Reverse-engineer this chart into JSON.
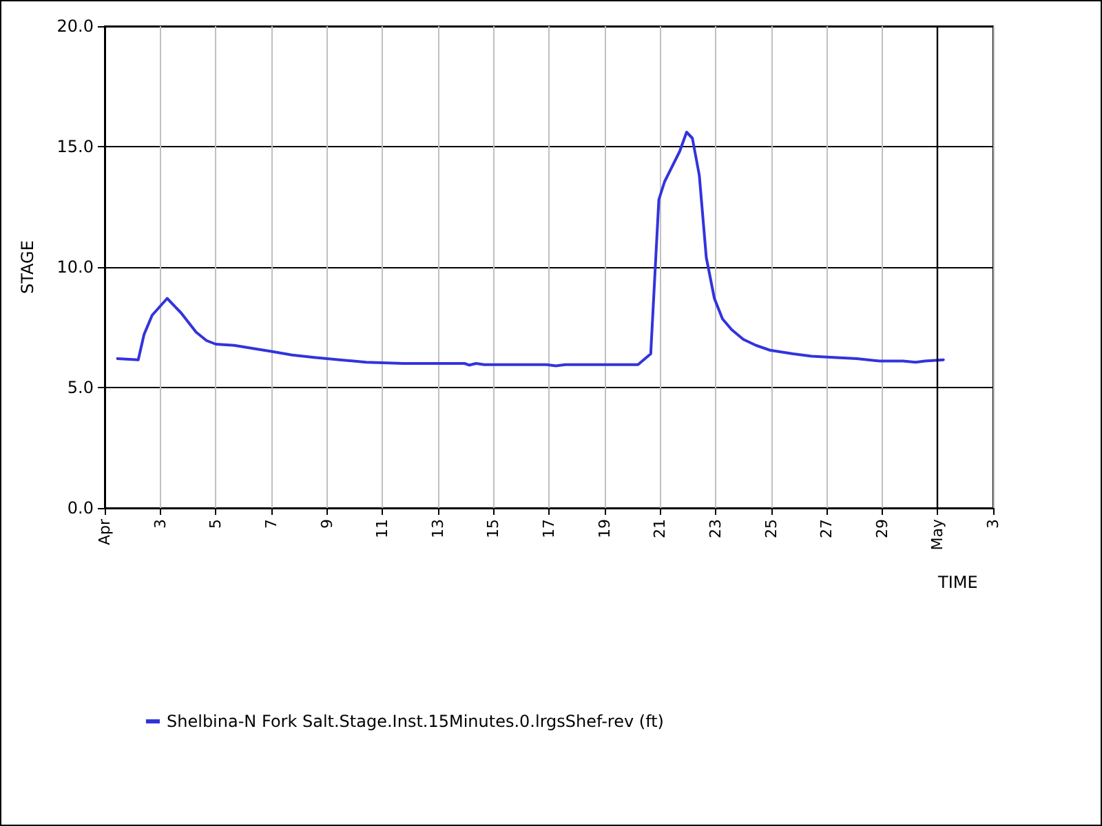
{
  "chart_data": {
    "type": "line",
    "xlabel": "TIME",
    "ylabel": "STAGE",
    "x": [
      "--04-01T11:00",
      "--04-02T05:00",
      "--04-02T10:00",
      "--04-02T17:00",
      "--04-03T06:00",
      "--04-03T18:00",
      "--04-04T07:00",
      "--04-04T16:00",
      "--04-05T00:00",
      "--04-05T16:00",
      "--04-06T11:00",
      "--04-07T00:00",
      "--04-07T18:00",
      "--04-08T13:00",
      "--04-09T11:00",
      "--04-10T10:00",
      "--04-11T18:00",
      "--04-13T23:00",
      "--04-14T03:00",
      "--04-14T09:00",
      "--04-14T16:00",
      "--04-16T22:00",
      "--04-17T06:00",
      "--04-17T14:00",
      "--04-19T20:00",
      "--04-20T05:00",
      "--04-20T16:00",
      "--04-20T23:00",
      "--04-21T04:00",
      "--04-21T17:00",
      "--04-21T23:00",
      "--04-22T04:00",
      "--04-22T10:00",
      "--04-22T16:00",
      "--04-22T23:00",
      "--04-23T06:00",
      "--04-23T14:00",
      "--04-24T00:00",
      "--04-24T11:00",
      "--04-24T23:00",
      "--04-25T19:00",
      "--04-26T11:00",
      "--04-27T06:00",
      "--04-28T02:00",
      "--04-28T22:00",
      "--04-29T18:00",
      "--04-30T05:00",
      "--04-30T13:00",
      "--05-01T05:00"
    ],
    "series": [
      {
        "name": "Shelbina-N Fork Salt.Stage.Inst.15Minutes.0.lrgsShef-rev (ft)",
        "color": "#3333dd",
        "values": [
          6.2,
          6.15,
          7.2,
          8.0,
          8.7,
          8.1,
          7.3,
          6.95,
          6.8,
          6.75,
          6.6,
          6.5,
          6.35,
          6.25,
          6.15,
          6.05,
          6.0,
          6.0,
          5.93,
          6.0,
          5.95,
          5.95,
          5.9,
          5.95,
          5.95,
          5.95,
          6.4,
          12.8,
          13.55,
          14.8,
          15.6,
          15.35,
          13.8,
          10.4,
          8.7,
          7.85,
          7.4,
          7.0,
          6.75,
          6.55,
          6.4,
          6.3,
          6.25,
          6.2,
          6.1,
          6.1,
          6.05,
          6.1,
          6.15
        ]
      }
    ],
    "xlim": [
      "--04-01",
      "--05-03"
    ],
    "xticks": [
      {
        "value": "--04-01",
        "label": "Apr"
      },
      {
        "value": "--04-03",
        "label": "3"
      },
      {
        "value": "--04-05",
        "label": "5"
      },
      {
        "value": "--04-07",
        "label": "7"
      },
      {
        "value": "--04-09",
        "label": "9"
      },
      {
        "value": "--04-11",
        "label": "11"
      },
      {
        "value": "--04-13",
        "label": "13"
      },
      {
        "value": "--04-15",
        "label": "15"
      },
      {
        "value": "--04-17",
        "label": "17"
      },
      {
        "value": "--04-19",
        "label": "19"
      },
      {
        "value": "--04-21",
        "label": "21"
      },
      {
        "value": "--04-23",
        "label": "23"
      },
      {
        "value": "--04-25",
        "label": "25"
      },
      {
        "value": "--04-27",
        "label": "27"
      },
      {
        "value": "--04-29",
        "label": "29"
      },
      {
        "value": "--05-01",
        "label": "May"
      },
      {
        "value": "--05-03",
        "label": "3"
      }
    ],
    "ylim": [
      0,
      20
    ],
    "yticks": [
      {
        "value": 0,
        "label": "0.0"
      },
      {
        "value": 5,
        "label": "5.0"
      },
      {
        "value": 10,
        "label": "10.0"
      },
      {
        "value": 15,
        "label": "15.0"
      },
      {
        "value": 20,
        "label": "20.0"
      }
    ],
    "ref_lines": [
      {
        "axis": "x",
        "value": "--05-01",
        "color": "#000000"
      }
    ],
    "grid": true,
    "legend": "bottom",
    "marker": "none",
    "line_style": "solid"
  }
}
